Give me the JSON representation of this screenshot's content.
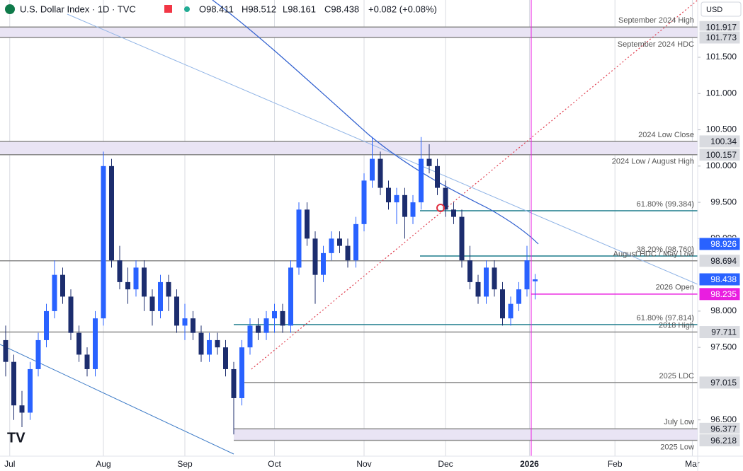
{
  "header": {
    "title": "U.S. Dollar Index · 1D · TVC",
    "quote": [
      "O98.411",
      "H98.512",
      "L98.161",
      "C98.438",
      "+0.082 (+0.08%)"
    ],
    "currency": "USD"
  },
  "chart_data": {
    "type": "candlestick",
    "up_color": "#2962ff",
    "down_color": "#1c2d6e",
    "ylim": [
      96.0,
      102.29
    ],
    "yticks": [
      {
        "value": 101.5,
        "label": "101.500"
      },
      {
        "value": 101,
        "label": "101.000"
      },
      {
        "value": 100.5,
        "label": "100.500"
      },
      {
        "value": 100,
        "label": "100.000"
      },
      {
        "value": 99.5,
        "label": "99.500"
      },
      {
        "value": 99,
        "label": "99.000"
      },
      {
        "value": 98,
        "label": "98.000"
      },
      {
        "value": 97.5,
        "label": "97.500"
      },
      {
        "value": 96.5,
        "label": "96.500"
      }
    ],
    "x_labels": [
      "Jul",
      "Aug",
      "Sep",
      "Oct",
      "Nov",
      "Dec",
      "2026",
      "Feb",
      "Mar"
    ],
    "candles": [
      [
        97.6,
        97.8,
        97.1,
        97.3
      ],
      [
        97.3,
        97.4,
        96.5,
        96.7
      ],
      [
        96.7,
        96.9,
        96.4,
        96.6
      ],
      [
        96.6,
        97.3,
        96.5,
        97.2
      ],
      [
        97.2,
        97.7,
        97.1,
        97.6
      ],
      [
        97.6,
        98.1,
        97.5,
        98.0
      ],
      [
        98.0,
        98.7,
        97.9,
        98.5
      ],
      [
        98.5,
        98.6,
        98.1,
        98.2
      ],
      [
        98.2,
        98.3,
        97.6,
        97.7
      ],
      [
        97.7,
        97.8,
        97.3,
        97.4
      ],
      [
        97.4,
        97.5,
        97.1,
        97.2
      ],
      [
        97.2,
        98.0,
        97.1,
        97.9
      ],
      [
        97.9,
        100.2,
        97.8,
        100.0
      ],
      [
        100.0,
        100.1,
        98.6,
        98.7
      ],
      [
        98.7,
        98.9,
        98.3,
        98.4
      ],
      [
        98.4,
        98.6,
        98.1,
        98.3
      ],
      [
        98.3,
        98.7,
        98.2,
        98.6
      ],
      [
        98.6,
        98.7,
        98.0,
        98.2
      ],
      [
        98.2,
        98.3,
        97.8,
        98.0
      ],
      [
        98.0,
        98.5,
        97.9,
        98.4
      ],
      [
        98.4,
        98.5,
        98.0,
        98.2
      ],
      [
        98.2,
        98.3,
        97.7,
        97.8
      ],
      [
        97.8,
        98.1,
        97.6,
        97.9
      ],
      [
        97.9,
        98.0,
        97.6,
        97.7
      ],
      [
        97.7,
        97.8,
        97.3,
        97.4
      ],
      [
        97.4,
        97.7,
        97.3,
        97.6
      ],
      [
        97.6,
        97.7,
        97.4,
        97.5
      ],
      [
        97.5,
        97.6,
        97.1,
        97.2
      ],
      [
        97.2,
        97.3,
        96.3,
        96.8
      ],
      [
        96.8,
        97.6,
        96.7,
        97.5
      ],
      [
        97.5,
        97.9,
        97.4,
        97.8
      ],
      [
        97.8,
        97.9,
        97.6,
        97.7
      ],
      [
        97.7,
        98.0,
        97.6,
        97.9
      ],
      [
        97.9,
        98.1,
        97.7,
        98.0
      ],
      [
        98.0,
        98.1,
        97.7,
        97.8
      ],
      [
        97.8,
        98.7,
        97.7,
        98.6
      ],
      [
        98.6,
        99.5,
        98.5,
        99.4
      ],
      [
        99.4,
        99.5,
        98.9,
        99.0
      ],
      [
        99.0,
        99.1,
        98.1,
        98.5
      ],
      [
        98.5,
        98.9,
        98.4,
        98.8
      ],
      [
        98.8,
        99.1,
        98.7,
        99.0
      ],
      [
        99.0,
        99.1,
        98.8,
        98.9
      ],
      [
        98.9,
        99.0,
        98.6,
        98.7
      ],
      [
        98.7,
        99.3,
        98.6,
        99.2
      ],
      [
        99.2,
        99.9,
        99.1,
        99.8
      ],
      [
        99.8,
        100.4,
        99.7,
        100.1
      ],
      [
        100.1,
        100.2,
        99.6,
        99.7
      ],
      [
        99.7,
        99.8,
        99.4,
        99.5
      ],
      [
        99.5,
        99.7,
        99.2,
        99.6
      ],
      [
        99.6,
        99.7,
        99.0,
        99.3
      ],
      [
        99.3,
        99.6,
        99.2,
        99.5
      ],
      [
        99.5,
        100.4,
        99.4,
        100.1
      ],
      [
        100.1,
        100.3,
        99.9,
        100.0
      ],
      [
        100.0,
        100.1,
        99.6,
        99.7
      ],
      [
        99.7,
        99.8,
        99.3,
        99.4
      ],
      [
        99.4,
        99.5,
        99.2,
        99.3
      ],
      [
        99.3,
        99.4,
        98.6,
        98.7
      ],
      [
        98.7,
        98.9,
        98.3,
        98.4
      ],
      [
        98.4,
        98.5,
        98.1,
        98.2
      ],
      [
        98.2,
        98.7,
        98.1,
        98.6
      ],
      [
        98.6,
        98.7,
        98.2,
        98.3
      ],
      [
        98.3,
        98.4,
        97.8,
        97.9
      ],
      [
        97.9,
        98.2,
        97.8,
        98.1
      ],
      [
        98.1,
        98.4,
        98.0,
        98.3
      ],
      [
        98.3,
        98.9,
        98.2,
        98.7
      ],
      [
        98.411,
        98.512,
        98.161,
        98.438
      ]
    ],
    "levels": [
      {
        "name": "September 2024 High",
        "value": 101.917,
        "style": "band-top",
        "box": true,
        "color": "#888888"
      },
      {
        "name": "September 2024 HDC",
        "value": 101.773,
        "style": "band-bottom",
        "box": true,
        "color": "#888888"
      },
      {
        "name": "2024 Low Close",
        "value": 100.34,
        "style": "band-top",
        "box": true,
        "color": "#888888"
      },
      {
        "name": "2024 Low / August High",
        "value": 100.157,
        "style": "band-bottom",
        "box": true,
        "color": "#888888"
      },
      {
        "name": "61.80% (99.384)",
        "value": 99.384,
        "style": "fib",
        "box": false,
        "color": "#1b7c8c"
      },
      {
        "value": 98.926,
        "style": "none",
        "box": true,
        "color": "#2962ff"
      },
      {
        "name": "38.20% (98.760)",
        "value": 98.76,
        "style": "fib",
        "box": false,
        "color": "#1b7c8c"
      },
      {
        "name": "August HDC / May Low",
        "value": 98.694,
        "style": "line",
        "box": true,
        "color": "#888888"
      },
      {
        "value": 98.438,
        "style": "none",
        "box": true,
        "color": "#2962ff"
      },
      {
        "name": "2026 Open",
        "value": 98.235,
        "style": "open",
        "box": true,
        "color": "#e91ee0"
      },
      {
        "name": "61.80% (97.814)",
        "value": 97.814,
        "style": "fib",
        "box": false,
        "color": "#1b7c8c"
      },
      {
        "name": "2018 High",
        "value": 97.711,
        "style": "line",
        "box": true,
        "color": "#888888"
      },
      {
        "name": "2025 LDC",
        "value": 97.015,
        "style": "line",
        "box": true,
        "color": "#888888"
      },
      {
        "name": "July Low",
        "value": 96.377,
        "style": "band-top",
        "box": true,
        "color": "#888888"
      },
      {
        "name": "2025 Low",
        "value": 96.218,
        "style": "band-bottom",
        "box": true,
        "color": "#888888"
      }
    ]
  }
}
